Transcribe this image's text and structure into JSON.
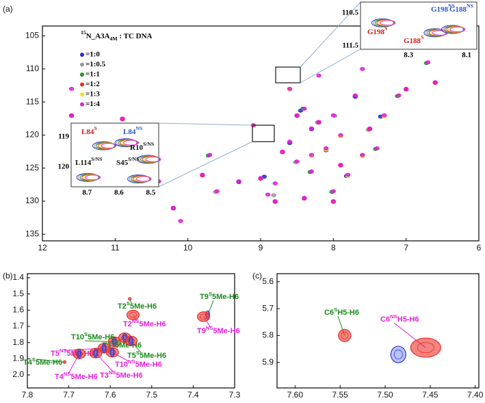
{
  "chart_data": [
    {
      "type": "scatter",
      "panel_label": "(a)",
      "legend_title": {
        "sup": "15",
        "text": "N_A3A",
        "sub": "4M",
        "after": " : TC DNA"
      },
      "xlim": [
        12,
        6
      ],
      "ylim": [
        103.5,
        136
      ],
      "xticks": [
        12,
        11,
        10,
        9,
        8,
        7,
        6
      ],
      "yticks": [
        105,
        110,
        115,
        120,
        125,
        130,
        135
      ],
      "series": [
        {
          "name": "=1:0",
          "color": "#1f2fd0",
          "x": [
            8.95,
            8.6,
            8.3,
            8.1,
            7.82,
            7.6,
            7.35,
            9.3,
            8.45,
            7.7
          ],
          "values": [
            126.3,
            121.2,
            119.1,
            122.3,
            126.2,
            123.1,
            117.2,
            127.1,
            116.3,
            114.2
          ]
        },
        {
          "name": "=1:0.5",
          "color": "#999999",
          "x": [
            8.52,
            8.22,
            7.98,
            7.52,
            9.62,
            8.82
          ],
          "values": [
            124.1,
            118.1,
            117.1,
            119.2,
            128.6,
            129.1
          ]
        },
        {
          "name": "=1:1",
          "color": "#1c9a2a",
          "x": [
            8.42,
            8.02,
            7.42,
            7.12,
            10.42,
            9.72,
            8.32,
            6.72
          ],
          "values": [
            116.0,
            128.6,
            122.1,
            114.1,
            127.1,
            123.1,
            125.6,
            109.1
          ]
        },
        {
          "name": "=1:2",
          "color": "#e8282a",
          "x": [
            11.6,
            10.9,
            10.5,
            10.2,
            9.8,
            9.0,
            8.8,
            8.5,
            8.2,
            8.0,
            7.9,
            7.5,
            7.0,
            6.6,
            8.4,
            8.7
          ],
          "values": [
            117.1,
            117.6,
            121.1,
            131.1,
            126.1,
            126.6,
            130.1,
            117.1,
            118.1,
            130.1,
            124.6,
            119.1,
            113.1,
            112.1,
            129.6,
            122.6
          ]
        },
        {
          "name": "=1:3",
          "color": "#f0e020",
          "x": [
            8.3,
            8.1,
            7.8,
            7.6,
            9.1,
            7.3,
            8.6,
            7.9
          ],
          "values": [
            123.2,
            122.2,
            126.2,
            123.2,
            118.6,
            117.2,
            113.1,
            120.2
          ]
        },
        {
          "name": "=1:4",
          "color": "#e020d8",
          "x": [
            11.6,
            11.6,
            10.9,
            10.5,
            10.4,
            10.2,
            10.1,
            9.8,
            9.6,
            9.3,
            9.0,
            8.9,
            8.8,
            8.6,
            8.5,
            8.4,
            8.3,
            8.2,
            8.0,
            8.1,
            8.3,
            8.5,
            7.9,
            7.8,
            7.6,
            7.5,
            7.3,
            7.1,
            7.0,
            6.7,
            6.6,
            8.8,
            8.4,
            8.0,
            9.7,
            7.7,
            8.2,
            8.7,
            8.3,
            7.9,
            7.6,
            8.6,
            7.4,
            9.1,
            8.0
          ],
          "values": [
            117,
            113,
            117.5,
            121,
            127,
            131,
            133,
            126,
            128.5,
            127,
            126.5,
            129,
            130,
            121,
            117,
            116,
            119,
            118,
            117,
            122,
            123,
            124,
            124.5,
            126,
            123,
            119,
            117,
            114,
            113,
            109,
            112,
            127.3,
            129.5,
            130,
            123,
            114,
            111,
            122.5,
            125.5,
            120,
            110,
            113,
            122,
            118.5,
            128.5
          ]
        }
      ],
      "insets": [
        {
          "xlim": [
            8.465,
            8.065
          ],
          "ylim": [
            110.17,
            111.6
          ],
          "xticks": [
            8.3,
            8.1
          ],
          "yticks": [
            110.5,
            111.5
          ],
          "peaks": {
            "x": [
              8.38,
              8.2,
              8.14
            ],
            "y": [
              110.8,
              111.1,
              111.0
            ]
          },
          "labels": [
            {
              "text": "G198",
              "sup": "NS",
              "color": "#2a55c0"
            },
            {
              "text": "G188",
              "sup": "NS",
              "color": "#2a55c0"
            },
            {
              "text": "G198",
              "sup": "S",
              "color": "#d81818"
            },
            {
              "text": "G188",
              "sup": "S",
              "color": "#d81818"
            }
          ]
        },
        {
          "xlim": [
            8.75,
            8.475
          ],
          "ylim": [
            118.55,
            120.66
          ],
          "xticks": [
            8.7,
            8.6,
            8.5
          ],
          "yticks": [
            119,
            120
          ],
          "peaks": {
            "x": [
              8.64,
              8.57,
              8.5,
              8.69,
              8.53
            ],
            "y": [
              119.3,
              119.2,
              119.75,
              120.35,
              120.4
            ]
          },
          "labels": [
            {
              "text": "L84",
              "sup": "S",
              "color": "#d81818"
            },
            {
              "text": "L84",
              "sup": "NS",
              "color": "#2a55c0"
            },
            {
              "text": "R10",
              "sup": "S/NS",
              "color": "#111111"
            },
            {
              "text": "L114",
              "sup": "S/NS",
              "color": "#111111"
            },
            {
              "text": "S45",
              "sup": "S/NS",
              "color": "#111111"
            }
          ]
        }
      ]
    },
    {
      "type": "peaks",
      "panel_label": "(b)",
      "xlim": [
        7.8,
        7.3
      ],
      "ylim": [
        1.375,
        2.08
      ],
      "xticks": [
        7.8,
        7.7,
        7.6,
        7.5,
        7.4,
        7.3
      ],
      "yticks": [
        1.4,
        1.5,
        1.6,
        1.7,
        1.8,
        1.9,
        {
          "value": 2,
          "label": "2.0"
        }
      ],
      "peaks": [
        {
          "label": {
            "text": "T2",
            "sup": "S",
            "after": "5Me-H6"
          },
          "label_color": "#1a8a1a",
          "x": 7.553,
          "y": 1.53,
          "colors": [
            "#e8302a"
          ]
        },
        {
          "label": {
            "text": "T2",
            "sup": "NS",
            "after": "5Me-H6"
          },
          "label_color": "#e020d8",
          "x": 7.545,
          "y": 1.63,
          "colors": [
            "#e8302a"
          ]
        },
        {
          "label": {
            "text": "T9",
            "sup": "S",
            "after": "5Me-H6"
          },
          "label_color": "#1a8a1a",
          "x": 7.365,
          "y": 1.63,
          "colors": [
            "#2b3bd6"
          ]
        },
        {
          "label": {
            "text": "T9",
            "sup": "NS",
            "after": "5Me-H6"
          },
          "label_color": "#e020d8",
          "x": 7.375,
          "y": 1.64,
          "colors": [
            "#e8302a"
          ]
        },
        {
          "label": {
            "text": "T10",
            "sup": "S",
            "after": "5Me-H6"
          },
          "label_color": "#1a8a1a",
          "x": 7.59,
          "y": 1.795,
          "colors": [
            "#e8302a",
            "#2b3bd6"
          ]
        },
        {
          "label": {
            "text": "T3",
            "sup": "S",
            "after": "5Me-H6"
          },
          "label_color": "#1a8a1a",
          "x": 7.565,
          "y": 1.77,
          "colors": [
            "#e8302a",
            "#2b3bd6"
          ]
        },
        {
          "label": {
            "text": "T5",
            "sup": "NS",
            "after": "5Me-H6"
          },
          "label_color": "#e020d8",
          "x": 7.615,
          "y": 1.835,
          "colors": [
            "#e8302a",
            "#2b3bd6"
          ]
        },
        {
          "label": {
            "text": "T4",
            "sup": "S",
            "after": "5Me-H6"
          },
          "label_color": "#1a8a1a",
          "x": 7.71,
          "y": 1.92,
          "colors": [
            "#e8302a"
          ]
        },
        {
          "label": {
            "text": "T5",
            "sup": "S",
            "after": "5Me-H6"
          },
          "label_color": "#1a8a1a",
          "x": 7.55,
          "y": 1.79,
          "colors": [
            "#e8302a",
            "#2b3bd6"
          ]
        },
        {
          "label": {
            "text": "T10",
            "sup": "NS",
            "after": "5Me-H6"
          },
          "label_color": "#e020d8",
          "x": 7.595,
          "y": 1.86,
          "colors": [
            "#e8302a",
            "#2b3bd6"
          ]
        },
        {
          "label": {
            "text": "T4",
            "sup": "NS",
            "after": "5Me-H6"
          },
          "label_color": "#e020d8",
          "x": 7.675,
          "y": 1.87,
          "colors": [
            "#e8302a",
            "#2b3bd6"
          ]
        },
        {
          "label": {
            "text": "T3",
            "sup": "NS",
            "after": "5Me-H6"
          },
          "label_color": "#e020d8",
          "x": 7.635,
          "y": 1.865,
          "colors": [
            "#e8302a",
            "#2b3bd6"
          ]
        }
      ]
    },
    {
      "type": "peaks",
      "panel_label": "(c)",
      "xlim": [
        7.62,
        7.396
      ],
      "ylim": [
        5.57,
        5.995
      ],
      "xticks": [
        {
          "value": 7.6,
          "label": "7.60"
        },
        7.55,
        {
          "value": 7.5,
          "label": "7.50"
        },
        7.45,
        {
          "value": 7.4,
          "label": "7.40"
        }
      ],
      "yticks": [
        5.6,
        5.7,
        5.8,
        5.9
      ],
      "peaks": [
        {
          "label": {
            "text": "C6",
            "sup": "S",
            "after": "H5-H6"
          },
          "label_color": "#1a8a1a",
          "x": 7.545,
          "y": 5.8,
          "colors": [
            "#e8302a"
          ]
        },
        {
          "label": {
            "text": "C6",
            "sup": "NS",
            "after": "H5-H6"
          },
          "label_color": "#e020d8",
          "x": 7.455,
          "y": 5.845,
          "colors": [
            "#2b3bd6",
            "#e8302a"
          ]
        }
      ]
    }
  ]
}
